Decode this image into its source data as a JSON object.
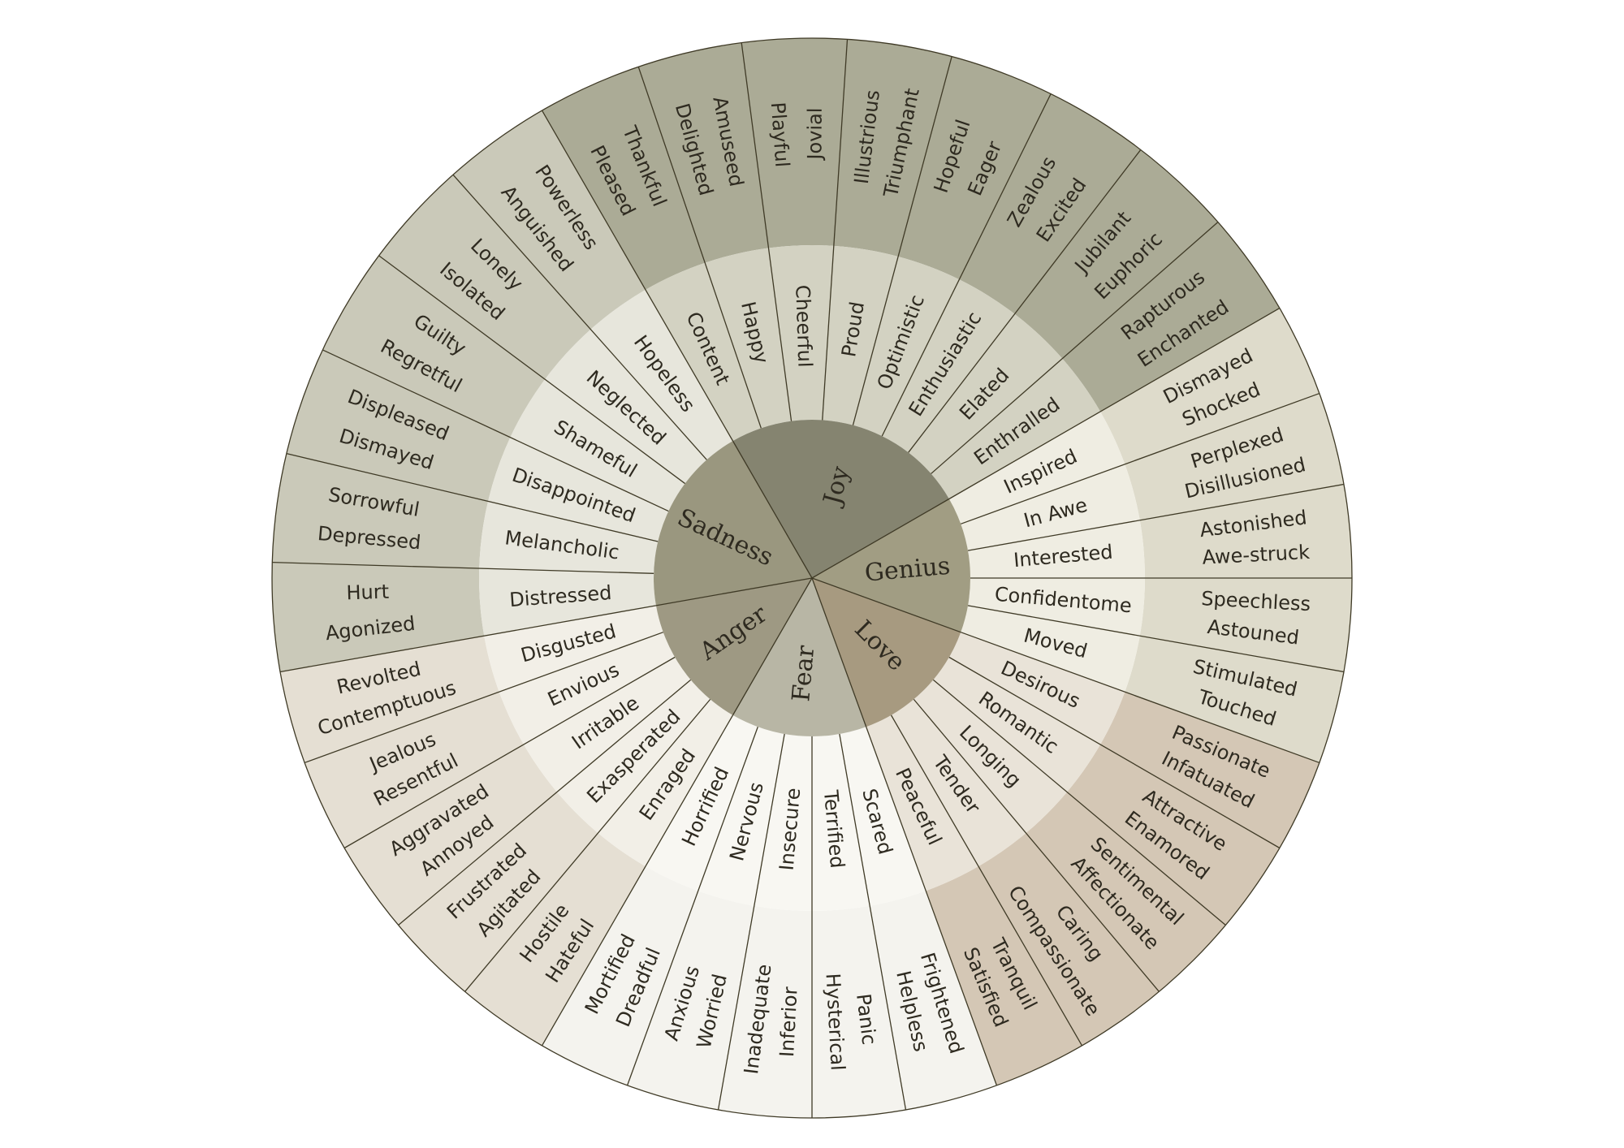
{
  "colors": {
    "outline": "#3f3a26",
    "text": "#2e2a20",
    "background": "#ffffff"
  },
  "wheel": {
    "emotions": [
      {
        "name": "Joy",
        "colors": {
          "core": "#858470",
          "mid": "#d3d2c2",
          "outer": "#abab96"
        },
        "segments": [
          {
            "mid": "Content",
            "outer": [
              "Pleased",
              "Thankful"
            ]
          },
          {
            "mid": "Happy",
            "outer": [
              "Delighted",
              "Amuseed"
            ]
          },
          {
            "mid": "Cheerful",
            "outer": [
              "Playful",
              "Jovial"
            ]
          },
          {
            "mid": "Proud",
            "outer": [
              "Illustrious",
              "Triumphant"
            ]
          },
          {
            "mid": "Optimistic",
            "outer": [
              "Hopeful",
              "Eager"
            ]
          },
          {
            "mid": "Enthusiastic",
            "outer": [
              "Zealous",
              "Excited"
            ]
          },
          {
            "mid": "Elated",
            "outer": [
              "Jubilant",
              "Euphoric"
            ]
          },
          {
            "mid": "Enthralled",
            "outer": [
              "Rapturous",
              "Enchanted"
            ]
          }
        ]
      },
      {
        "name": "Genius",
        "colors": {
          "core": "#a19d83",
          "mid": "#efede2",
          "outer": "#dedbcb"
        },
        "segments": [
          {
            "mid": "Inspired",
            "outer": [
              "Dismayed",
              "Shocked"
            ]
          },
          {
            "mid": "In Awe",
            "outer": [
              "Perplexed",
              "Disillusioned"
            ]
          },
          {
            "mid": "Interested",
            "outer": [
              "Astonished",
              "Awe-struck"
            ]
          },
          {
            "mid": "Confidentome",
            "outer": [
              "Speechless",
              "Astouned"
            ]
          },
          {
            "mid": "Moved",
            "outer": [
              "Stimulated",
              "Touched"
            ]
          }
        ]
      },
      {
        "name": "Love",
        "colors": {
          "core": "#a79a80",
          "mid": "#e9e3d8",
          "outer": "#d4c7b5"
        },
        "segments": [
          {
            "mid": "Desirous",
            "outer": [
              "Passionate",
              "Infatuated"
            ]
          },
          {
            "mid": "Romantic",
            "outer": [
              "Attractive",
              "Enamored"
            ]
          },
          {
            "mid": "Longing",
            "outer": [
              "Sentimental",
              "Affectionate"
            ]
          },
          {
            "mid": "Tender",
            "outer": [
              "Caring",
              "Compassionate"
            ]
          },
          {
            "mid": "Peaceful",
            "outer": [
              "Tranquil",
              "Satisfied"
            ]
          }
        ]
      },
      {
        "name": "Fear",
        "colors": {
          "core": "#b8b6a5",
          "mid": "#f8f7f2",
          "outer": "#f4f3ee"
        },
        "segments": [
          {
            "mid": "Scared",
            "outer": [
              "Frightened",
              "Helpless"
            ]
          },
          {
            "mid": "Terrified",
            "outer": [
              "Panic",
              "Hysterical"
            ]
          },
          {
            "mid": "Insecure",
            "outer": [
              "Inferior",
              "Inadequate"
            ]
          },
          {
            "mid": "Nervous",
            "outer": [
              "Worried",
              "Anxious"
            ]
          },
          {
            "mid": "Horrified",
            "outer": [
              "Dreadful",
              "Mortified"
            ]
          }
        ]
      },
      {
        "name": "Anger",
        "colors": {
          "core": "#9e9983",
          "mid": "#f2efe7",
          "outer": "#e5dfd3"
        },
        "segments": [
          {
            "mid": "Enraged",
            "outer": [
              "Hateful",
              "Hostile"
            ]
          },
          {
            "mid": "Exasperated",
            "outer": [
              "Agitated",
              "Frustrated"
            ]
          },
          {
            "mid": "Irritable",
            "outer": [
              "Annoyed",
              "Aggravated"
            ]
          },
          {
            "mid": "Envious",
            "outer": [
              "Resentful",
              "Jealous"
            ]
          },
          {
            "mid": "Disgusted",
            "outer": [
              "Contemptuous",
              "Revolted"
            ]
          }
        ]
      },
      {
        "name": "Sadness",
        "colors": {
          "core": "#9a977f",
          "mid": "#e7e6dc",
          "outer": "#cac9b9"
        },
        "segments": [
          {
            "mid": "Distressed",
            "outer": [
              "Agonized",
              "Hurt"
            ]
          },
          {
            "mid": "Melancholic",
            "outer": [
              "Depressed",
              "Sorrowful"
            ]
          },
          {
            "mid": "Disappointed",
            "outer": [
              "Dismayed",
              "Displeased"
            ]
          },
          {
            "mid": "Shameful",
            "outer": [
              "Regretful",
              "Guilty"
            ]
          },
          {
            "mid": "Neglected",
            "outer": [
              "Isolated",
              "Lonely"
            ]
          },
          {
            "mid": "Hopeless",
            "outer": [
              "Anguished",
              "Powerless"
            ]
          }
        ]
      }
    ]
  }
}
